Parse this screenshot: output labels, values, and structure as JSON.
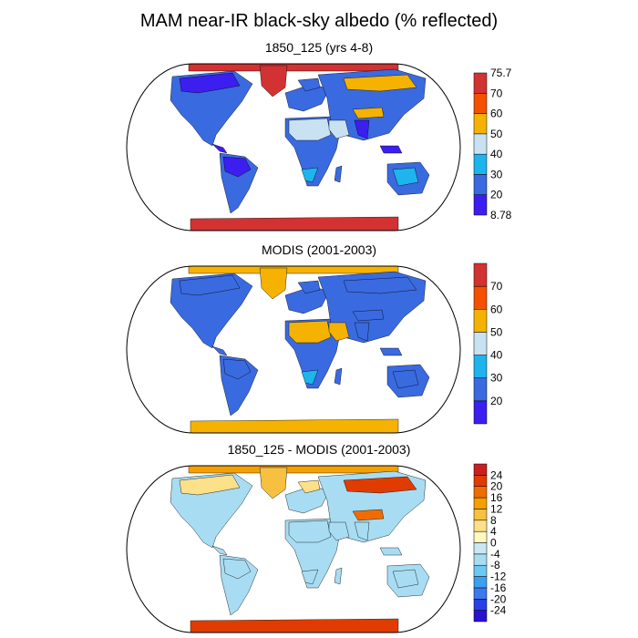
{
  "title": "MAM near-IR black-sky albedo (% reflected)",
  "panels": [
    {
      "title": "1850_125 (yrs 4-8)",
      "colors": [
        "#3c1ef0",
        "#3a6ae0",
        "#1eb4ee",
        "#c8e2f2",
        "#f5b200",
        "#f55000",
        "#d23232"
      ],
      "labels": [
        "8.78",
        "20",
        "30",
        "40",
        "50",
        "60",
        "70",
        "75.7"
      ],
      "palette": {
        "ocean": "#ffffff",
        "land": "#3a6ae0",
        "antarctica": "#d23232",
        "arctic": "#d23232",
        "greenland": "#d23232",
        "sahara": "#c8e2f2",
        "arabia": "#c8e2f2",
        "desert": "#1eb4ee",
        "high_lat": "#3a6ae0",
        "tropics": "#3c1ef0",
        "asia_north": "#f5b200",
        "himalaya": "#f5b200",
        "aus": "#1eb4ee",
        "canada": "#3c1ef0",
        "sasia": "#3c1ef0"
      }
    },
    {
      "title": "MODIS (2001-2003)",
      "colors": [
        "#3c1ef0",
        "#3a6ae0",
        "#1eb4ee",
        "#c8e2f2",
        "#f5b200",
        "#f55000",
        "#d23232"
      ],
      "labels": [
        "",
        "20",
        "30",
        "40",
        "50",
        "60",
        "70",
        ""
      ],
      "palette": {
        "ocean": "#ffffff",
        "land": "#3a6ae0",
        "antarctica": "#f5b200",
        "arctic": "#f5b200",
        "greenland": "#f5b200",
        "sahara": "#f5b200",
        "arabia": "#f5b200",
        "desert": "#1eb4ee",
        "high_lat": "#3a6ae0",
        "tropics": "#3a6ae0",
        "asia_north": "#3a6ae0",
        "himalaya": "#3a6ae0",
        "aus": "#3a6ae0",
        "canada": "#3a6ae0",
        "sasia": "#3a6ae0"
      }
    },
    {
      "title": "1850_125 - MODIS (2001-2003)",
      "colors": [
        "#2a10d0",
        "#2840e6",
        "#3c78ee",
        "#3ca0f0",
        "#6cc8f4",
        "#a8dcf2",
        "#c8e8f4",
        "#fff8c0",
        "#fce08a",
        "#f8c040",
        "#f5a000",
        "#f06c00",
        "#e03c00",
        "#c82020"
      ],
      "labels": [
        "",
        "-24",
        "-20",
        "-16",
        "-12",
        "-8",
        "-4",
        "0",
        "4",
        "8",
        "12",
        "16",
        "20",
        "24",
        ""
      ],
      "palette": {
        "ocean": "#ffffff",
        "land": "#a8dcf2",
        "antarctica": "#e03c00",
        "arctic": "#f5a000",
        "greenland": "#f8c040",
        "sahara": "#a8dcf2",
        "arabia": "#a8dcf2",
        "desert": "#a8dcf2",
        "high_lat": "#fce08a",
        "tropics": "#a8dcf2",
        "asia_north": "#e03c00",
        "himalaya": "#f06c00",
        "aus": "#a8dcf2",
        "canada": "#fce08a",
        "sasia": "#a8dcf2"
      }
    }
  ]
}
